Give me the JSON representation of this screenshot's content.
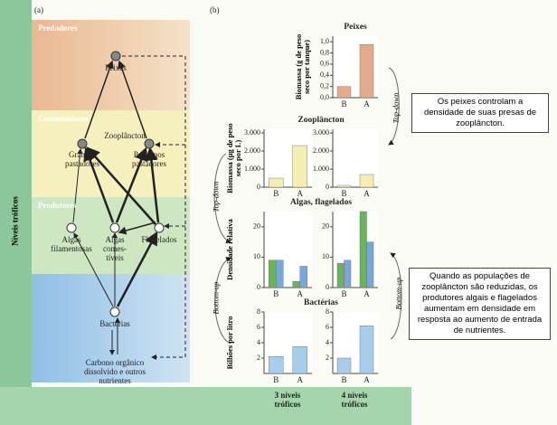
{
  "panel_a": {
    "label": "(a)",
    "axis_label": "Níveis tróficos",
    "levels": [
      "Predadores",
      "Consumidores",
      "Produtores"
    ],
    "zooplankton_label": "Zooplâncton",
    "nodes": [
      {
        "label": "Peixes"
      },
      {
        "label": "Grandes pastadores"
      },
      {
        "label": "Pequenos pastadores"
      },
      {
        "label": "Algas filamentosas"
      },
      {
        "label": "Algas comes-tíveis"
      },
      {
        "label": "Flagelados"
      },
      {
        "label": "Bactérias"
      }
    ],
    "nutrients_label": "Carbono orgânico dissolvido e outros nutrientes"
  },
  "panel_b": {
    "label": "(b)",
    "rows": [
      {
        "title": "Peixes",
        "y_label": "Biomassa (g de peso seco por tanque)",
        "type": "bar",
        "categories": [
          "B",
          "A"
        ],
        "ylim": [
          0,
          1.1
        ],
        "yticks": [
          {
            "value": 0,
            "label": "0,0"
          },
          {
            "value": 0.2,
            "label": "0,2"
          },
          {
            "value": 0.4,
            "label": "0,4"
          },
          {
            "value": 0.6,
            "label": "0,6"
          },
          {
            "value": 0.8,
            "label": "0,8"
          },
          {
            "value": 1,
            "label": "1,0"
          }
        ],
        "charts": [
          null,
          {
            "series": [
              {
                "color": "#e3ab8c",
                "values": [
                  0.2,
                  0.95
                ]
              }
            ]
          }
        ]
      },
      {
        "title": "Zooplâncton",
        "y_label": "Biomassa (µg de peso seco por L)",
        "type": "bar",
        "categories": [
          "B",
          "A"
        ],
        "ylim": [
          0,
          3200
        ],
        "yticks": [
          0,
          {
            "value": 1000,
            "label": "1.000"
          },
          {
            "value": 2000,
            "label": "2.000"
          },
          {
            "value": 3000,
            "label": "3.000"
          }
        ],
        "charts": [
          {
            "series": [
              {
                "color": "#f3eeb2",
                "values": [
                  500,
                  2300
                ]
              }
            ]
          },
          {
            "series": [
              {
                "color": "#f3eeb2",
                "values": [
                  100,
                  700
                ]
              }
            ]
          }
        ]
      },
      {
        "title": "Algas, flagelados",
        "y_label": "Densidade relativa",
        "type": "bar",
        "categories": [
          "B",
          "A"
        ],
        "ylim": [
          0,
          25
        ],
        "yticks": [
          0,
          10,
          20
        ],
        "charts": [
          {
            "series": [
              {
                "color": "#6db25d",
                "values": [
                  9,
                  2
                ]
              },
              {
                "color": "#7ba6d9",
                "values": [
                  9,
                  7
                ]
              }
            ]
          },
          {
            "series": [
              {
                "color": "#6db25d",
                "values": [
                  8,
                  25
                ]
              },
              {
                "color": "#7ba6d9",
                "values": [
                  9,
                  15
                ]
              }
            ]
          }
        ]
      },
      {
        "title": "Bactérias",
        "y_label": "Bilhões por litro",
        "type": "bar",
        "categories": [
          "B",
          "A"
        ],
        "ylim": [
          0,
          8
        ],
        "yticks": [
          2,
          4,
          6,
          8
        ],
        "charts": [
          {
            "series": [
              {
                "color": "#a8cdea",
                "values": [
                  2.2,
                  3.5
                ]
              }
            ]
          },
          {
            "series": [
              {
                "color": "#a8cdea",
                "values": [
                  2,
                  6.2
                ]
              }
            ]
          }
        ]
      }
    ],
    "columns": [
      "3 níveis tróficos",
      "4 níveis tróficos"
    ],
    "arrows": {
      "top_down": "Top-down",
      "bottom_up": "Bottom-up"
    },
    "notes": [
      "Os peixes controlam a densidade de suas presas de zooplâncton.",
      "Quando as populações de zooplâncton são reduzidas, os produtores algais e flagelados aumentam em densidade em resposta ao aumento de entrada de nutrientes."
    ]
  }
}
